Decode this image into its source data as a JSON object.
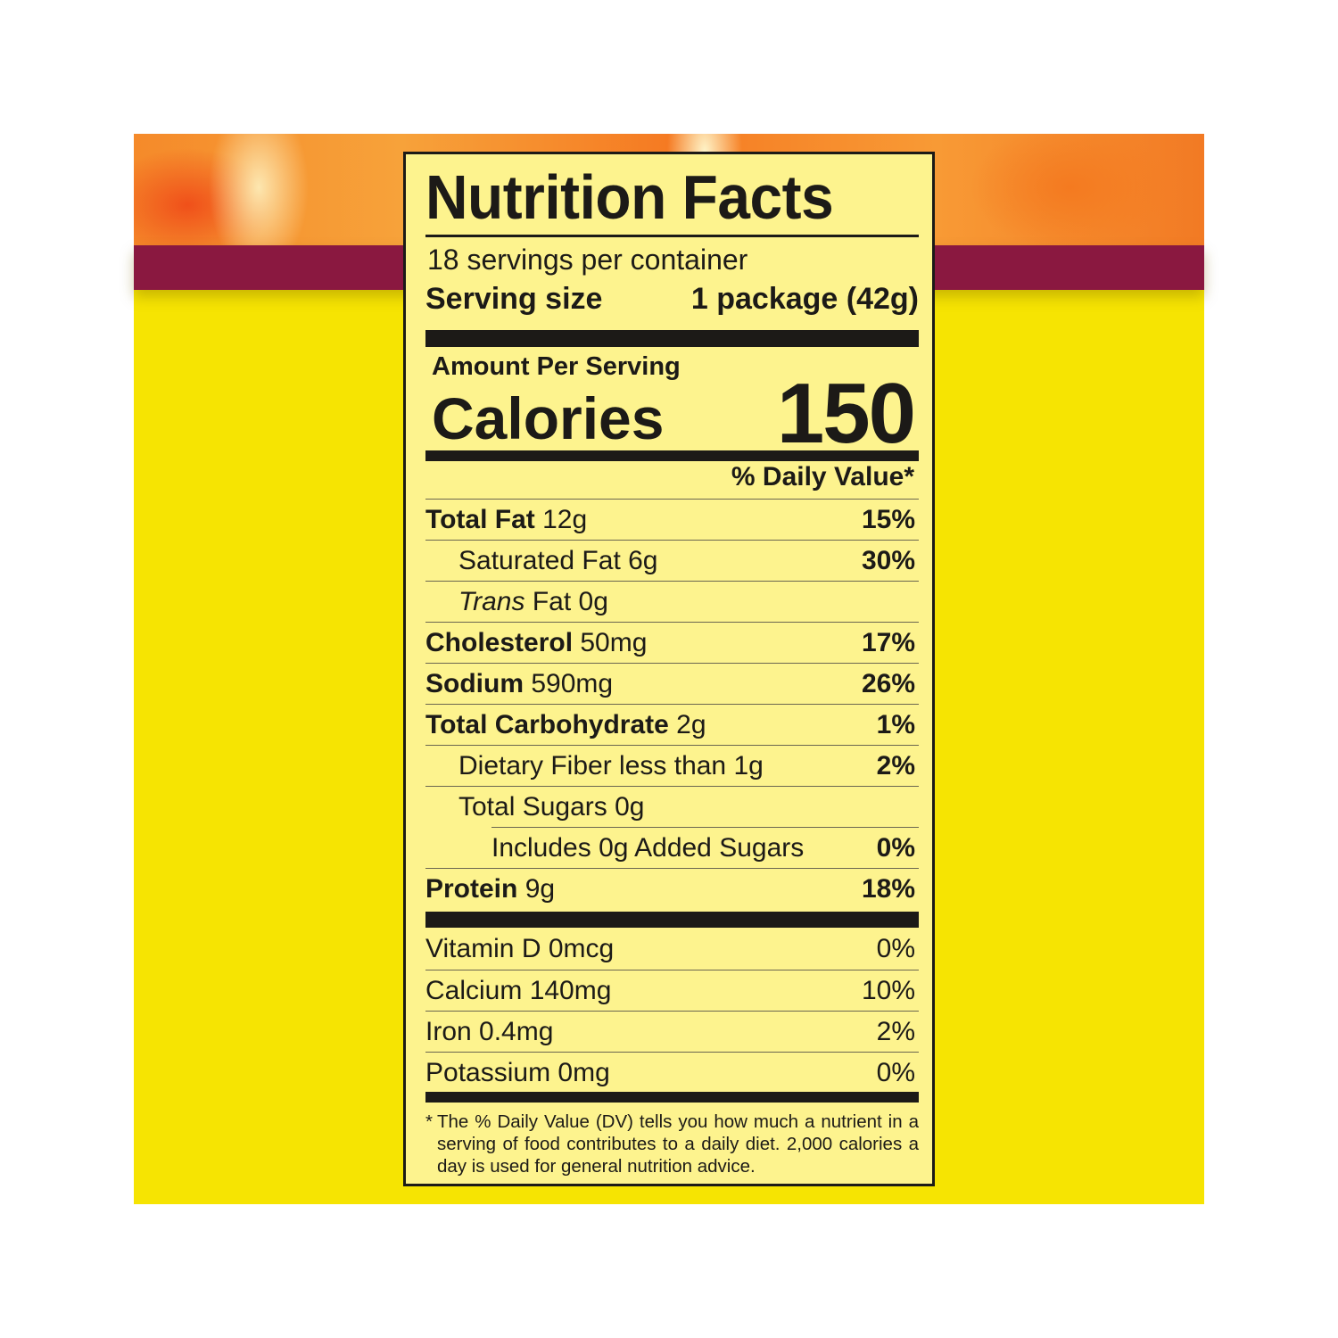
{
  "colors": {
    "package_yellow": "#f6e402",
    "band": "#8a1840",
    "label_bg": "#fdf38e",
    "ink": "#1c1a17"
  },
  "label": {
    "title": "Nutrition Facts",
    "servings_per_container": "18 servings per container",
    "serving_size_label": "Serving size",
    "serving_size_value": "1 package (42g)",
    "amount_per_serving": "Amount Per Serving",
    "calories_label": "Calories",
    "calories_value": "150",
    "dv_header": "% Daily Value*",
    "nutrients": [
      {
        "name": "Total Fat",
        "amount": "12g",
        "dv": "15%"
      },
      {
        "name": "Saturated Fat",
        "amount": "6g",
        "dv": "30%"
      },
      {
        "name": "Trans",
        "name_rest": "Fat",
        "amount": "0g",
        "dv": ""
      },
      {
        "name": "Cholesterol",
        "amount": "50mg",
        "dv": "17%"
      },
      {
        "name": "Sodium",
        "amount": "590mg",
        "dv": "26%"
      },
      {
        "name": "Total Carbohydrate",
        "amount": "2g",
        "dv": "1%"
      },
      {
        "name": "Dietary Fiber less than",
        "amount": "1g",
        "dv": "2%"
      },
      {
        "name": "Total Sugars",
        "amount": "0g",
        "dv": ""
      },
      {
        "name": "Includes 0g Added Sugars",
        "amount": "",
        "dv": "0%"
      },
      {
        "name": "Protein",
        "amount": "9g",
        "dv": "18%"
      }
    ],
    "vitamins": [
      {
        "text": "Vitamin D 0mcg",
        "dv": "0%"
      },
      {
        "text": "Calcium 140mg",
        "dv": "10%"
      },
      {
        "text": "Iron 0.4mg",
        "dv": "2%"
      },
      {
        "text": "Potassium 0mg",
        "dv": "0%"
      }
    ],
    "footnote_star": "*",
    "footnote": "The % Daily Value (DV) tells you how much a nutrient in a serving of food contributes to a daily diet. 2,000 calories a day is used for general nutrition advice."
  }
}
